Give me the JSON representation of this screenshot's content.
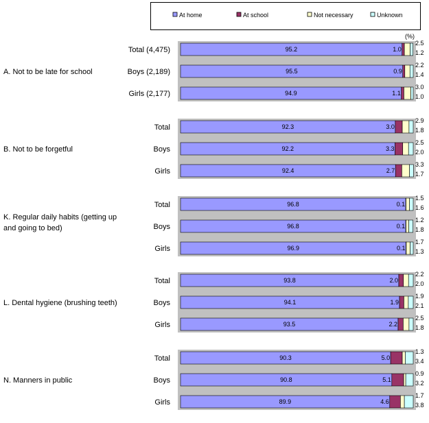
{
  "chart_data": {
    "type": "bar",
    "orientation": "horizontal",
    "stacked": true,
    "unit_label": "(%)",
    "legend": [
      {
        "name": "At home",
        "color": "#9999ff"
      },
      {
        "name": "At school",
        "color": "#993366"
      },
      {
        "name": "Not necessary",
        "color": "#ffffcc"
      },
      {
        "name": "Unknown",
        "color": "#ccffff"
      }
    ],
    "groups": [
      {
        "label": "A. Not to be  late for school",
        "rows": [
          {
            "label": "Total (4,475)",
            "values": [
              95.2,
              1.0,
              2.5,
              1.2
            ],
            "labels": [
              "95.2",
              "1.0",
              "2.5",
              "1.2"
            ]
          },
          {
            "label": "Boys (2,189)",
            "values": [
              95.5,
              0.9,
              2.2,
              1.4
            ],
            "labels": [
              "95.5",
              "0.9",
              "2.2",
              "1.4"
            ]
          },
          {
            "label": "Girls (2,177)",
            "values": [
              94.9,
              1.1,
              3.0,
              1.0
            ],
            "labels": [
              "94.9",
              "1.1",
              "3.0",
              "1.0"
            ]
          }
        ]
      },
      {
        "label": "B. Not to be forgetful",
        "rows": [
          {
            "label": "Total",
            "values": [
              92.3,
              3.0,
              2.9,
              1.8
            ],
            "labels": [
              "92.3",
              "3.0",
              "2.9",
              "1.8"
            ]
          },
          {
            "label": "Boys",
            "values": [
              92.2,
              3.3,
              2.5,
              2.0
            ],
            "labels": [
              "92.2",
              "3.3",
              "2.5",
              "2.0"
            ]
          },
          {
            "label": "Girls",
            "values": [
              92.4,
              2.7,
              3.3,
              1.7
            ],
            "labels": [
              "92.4",
              "2.7",
              "3.3",
              "1.7"
            ]
          }
        ]
      },
      {
        "label": "K. Regular daily habits (getting up and going to bed)",
        "label_lines": [
          "K. Regular daily habits (getting up",
          "and going to bed)"
        ],
        "rows": [
          {
            "label": "Total",
            "values": [
              96.8,
              0.1,
              1.5,
              1.6
            ],
            "labels": [
              "96.8",
              "0.1",
              "1.5",
              "1.6"
            ]
          },
          {
            "label": "Boys",
            "values": [
              96.8,
              0.1,
              1.2,
              1.8
            ],
            "labels": [
              "96.8",
              "0.1",
              "1.2",
              "1.8"
            ]
          },
          {
            "label": "Girls",
            "values": [
              96.9,
              0.1,
              1.7,
              1.3
            ],
            "labels": [
              "96.9",
              "0.1",
              "1.7",
              "1.3"
            ]
          }
        ]
      },
      {
        "label": "L. Dental hygiene (brushing teeth)",
        "rows": [
          {
            "label": "Total",
            "values": [
              93.8,
              2.0,
              2.2,
              2.0
            ],
            "labels": [
              "93.8",
              "2.0",
              "2.2",
              "2.0"
            ]
          },
          {
            "label": "Boys",
            "values": [
              94.1,
              1.9,
              1.9,
              2.1
            ],
            "labels": [
              "94.1",
              "1.9",
              "1.9",
              "2.1"
            ]
          },
          {
            "label": "Girls",
            "values": [
              93.5,
              2.2,
              2.5,
              1.8
            ],
            "labels": [
              "93.5",
              "2.2",
              "2.5",
              "1.8"
            ]
          }
        ]
      },
      {
        "label": "N. Manners in public",
        "rows": [
          {
            "label": "Total",
            "values": [
              90.3,
              5.0,
              1.3,
              3.4
            ],
            "labels": [
              "90.3",
              "5.0",
              "1.3",
              "3.4"
            ]
          },
          {
            "label": "Boys",
            "values": [
              90.8,
              5.1,
              0.9,
              3.2
            ],
            "labels": [
              "90.8",
              "5.1",
              "0.9",
              "3.2"
            ]
          },
          {
            "label": "Girls",
            "values": [
              89.9,
              4.6,
              1.7,
              3.8
            ],
            "labels": [
              "89.9",
              "4.6",
              "1.7",
              "3.8"
            ]
          }
        ]
      }
    ],
    "xlim": [
      0,
      100
    ],
    "grid": false,
    "legend_position": "top"
  }
}
